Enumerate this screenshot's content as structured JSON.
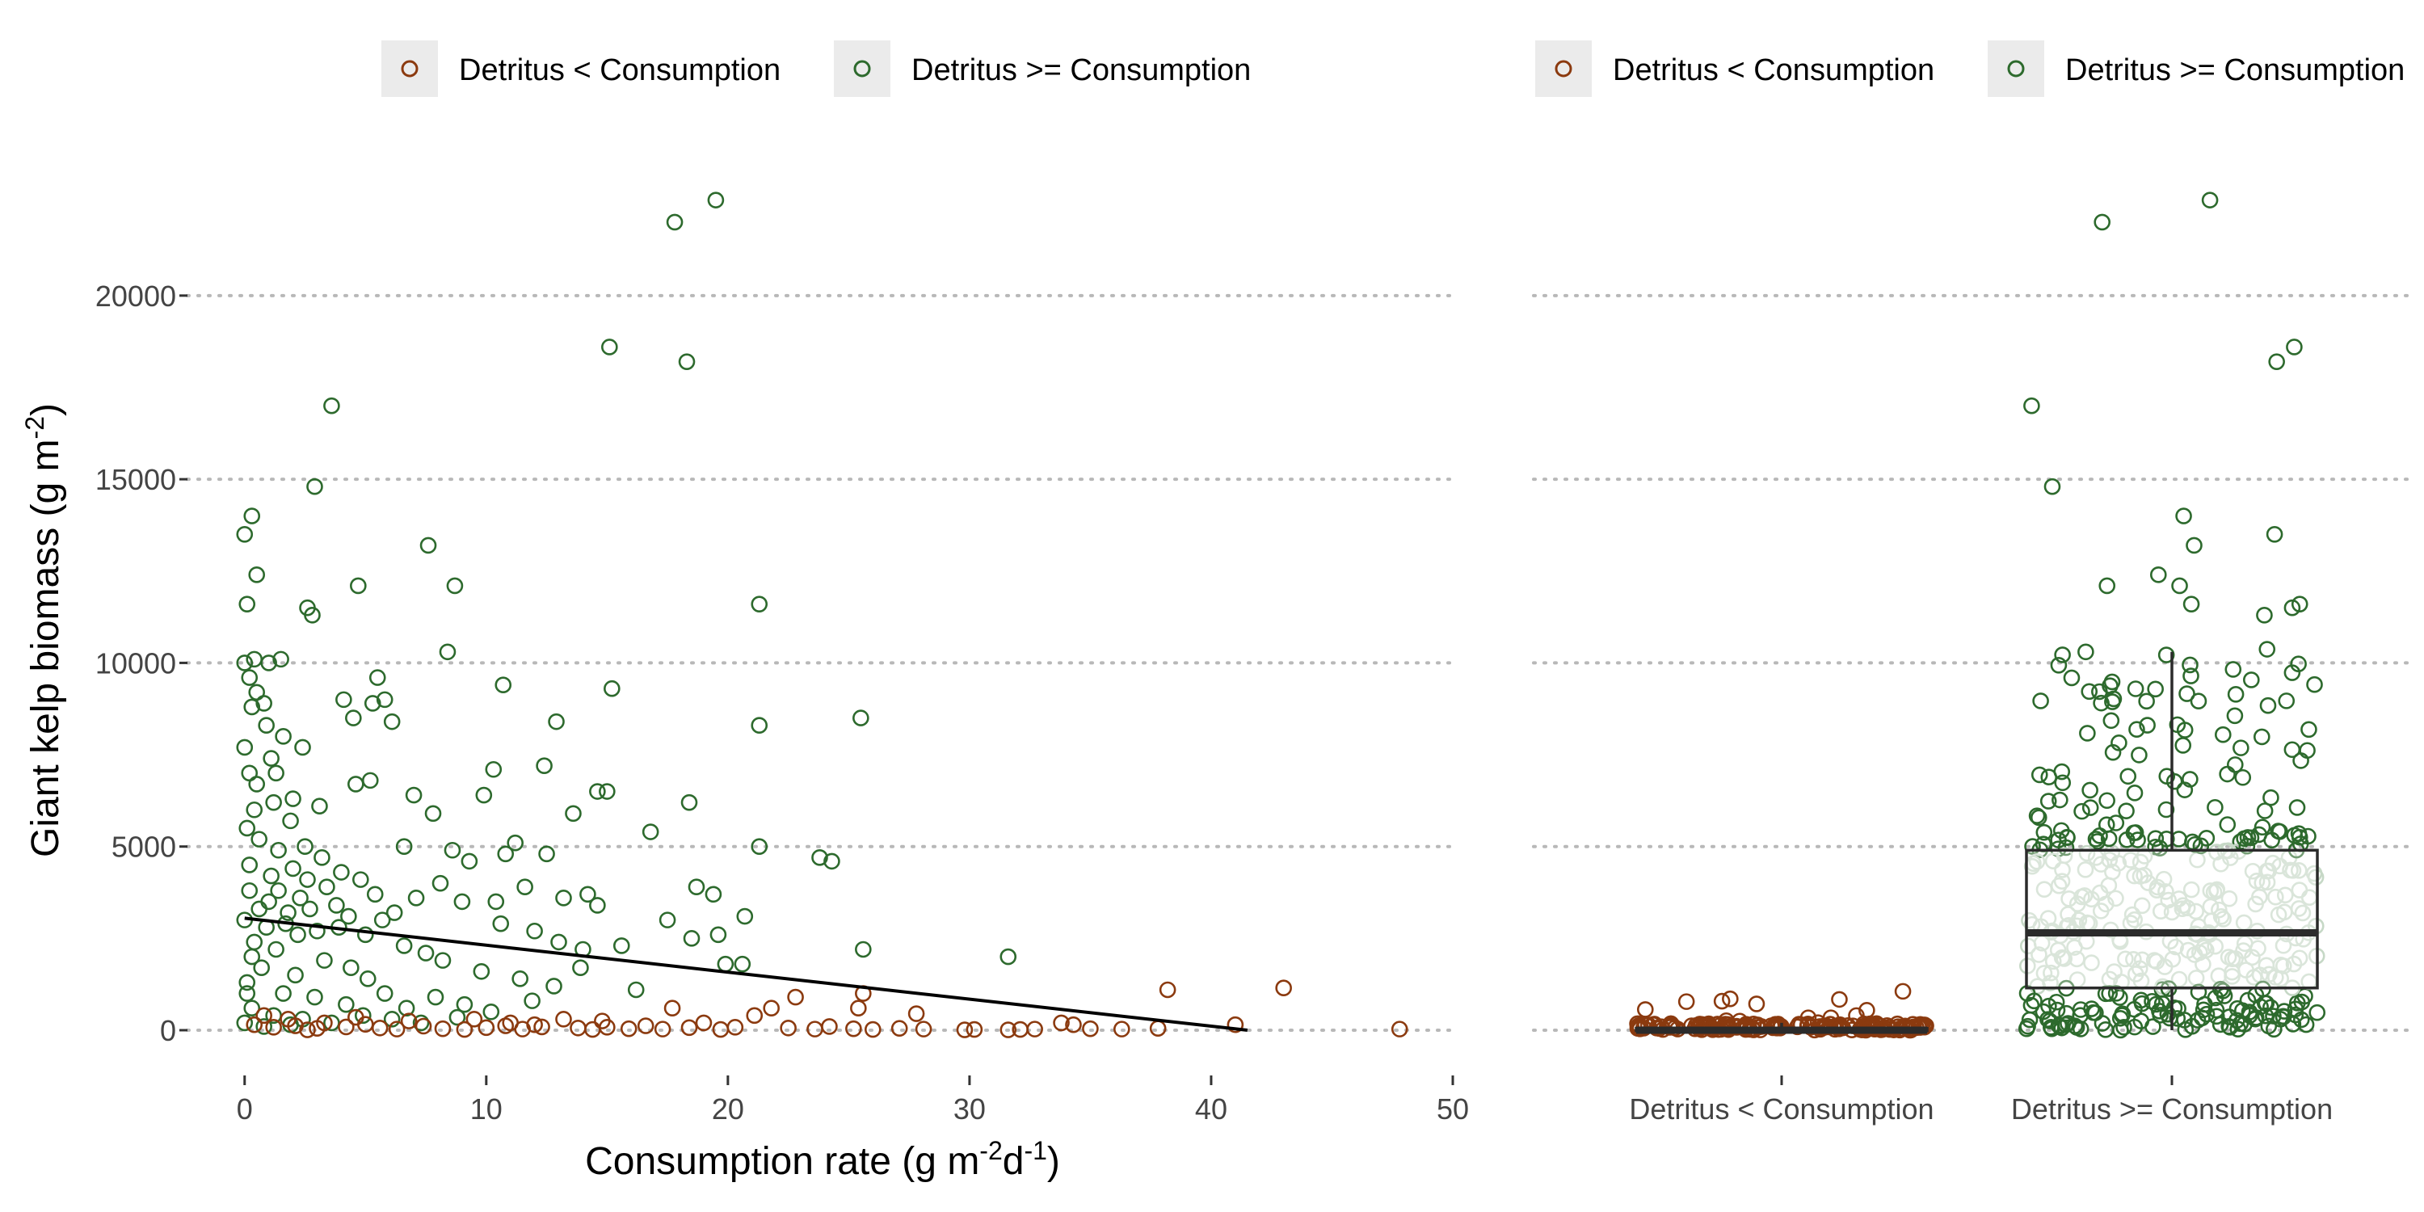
{
  "legend": {
    "entries": [
      {
        "label": "Detritus < Consumption",
        "color": "#8b3a0f"
      },
      {
        "label": "Detritus >= Consumption",
        "color": "#2d6a2d"
      }
    ]
  },
  "colors": {
    "detritus_lt": "#8b3a0f",
    "detritus_ge": "#2d6a2d",
    "ge_faded": "#c6d8c6",
    "box_stroke": "#2b2b2b",
    "fit_line": "#000000",
    "grid": "#b8b8b8"
  },
  "chart_data": [
    {
      "type": "scatter",
      "xlabel": "Consumption rate (g m-2d-1)",
      "ylabel": "Giant kelp biomass (g m-2)",
      "xlim": [
        -2.5,
        50
      ],
      "ylim": [
        -1100,
        24000
      ],
      "xticks": [
        0,
        10,
        20,
        30,
        40,
        50
      ],
      "yticks": [
        0,
        5000,
        10000,
        15000,
        20000
      ],
      "grid": "horizontal dotted",
      "legend_position": "top",
      "series": [
        {
          "name": "Detritus >= Consumption",
          "points": [
            [
              0.0,
              13500
            ],
            [
              0.3,
              14000
            ],
            [
              0.1,
              11600
            ],
            [
              0.5,
              12400
            ],
            [
              2.9,
              14800
            ],
            [
              3.6,
              17000
            ],
            [
              15.1,
              18600
            ],
            [
              17.8,
              22000
            ],
            [
              18.3,
              18200
            ],
            [
              19.5,
              22600
            ],
            [
              7.6,
              13200
            ],
            [
              4.7,
              12100
            ],
            [
              8.7,
              12100
            ],
            [
              21.3,
              11600
            ],
            [
              2.6,
              11500
            ],
            [
              2.8,
              11300
            ],
            [
              8.4,
              10300
            ],
            [
              0.4,
              10100
            ],
            [
              1.5,
              10100
            ],
            [
              0.0,
              10000
            ],
            [
              1.0,
              10000
            ],
            [
              0.2,
              9600
            ],
            [
              10.7,
              9400
            ],
            [
              15.2,
              9300
            ],
            [
              5.5,
              9600
            ],
            [
              4.1,
              9000
            ],
            [
              5.3,
              8900
            ],
            [
              5.8,
              9000
            ],
            [
              4.5,
              8500
            ],
            [
              6.1,
              8400
            ],
            [
              12.9,
              8400
            ],
            [
              21.3,
              8300
            ],
            [
              25.5,
              8500
            ],
            [
              0.3,
              8800
            ],
            [
              0.9,
              8300
            ],
            [
              1.6,
              8000
            ],
            [
              0.0,
              7700
            ],
            [
              1.1,
              7400
            ],
            [
              2.4,
              7700
            ],
            [
              5.2,
              6800
            ],
            [
              4.6,
              6700
            ],
            [
              7.0,
              6400
            ],
            [
              10.3,
              7100
            ],
            [
              12.4,
              7200
            ],
            [
              14.6,
              6500
            ],
            [
              18.4,
              6200
            ],
            [
              15.0,
              6500
            ],
            [
              0.5,
              6700
            ],
            [
              1.2,
              6200
            ],
            [
              2.0,
              6300
            ],
            [
              3.1,
              6100
            ],
            [
              13.6,
              5900
            ],
            [
              16.8,
              5400
            ],
            [
              7.8,
              5900
            ],
            [
              9.9,
              6400
            ],
            [
              21.3,
              5000
            ],
            [
              23.8,
              4700
            ],
            [
              24.3,
              4600
            ],
            [
              11.2,
              5100
            ],
            [
              10.8,
              4800
            ],
            [
              12.5,
              4800
            ],
            [
              8.6,
              4900
            ],
            [
              6.6,
              5000
            ],
            [
              9.3,
              4600
            ],
            [
              0.6,
              5200
            ],
            [
              1.4,
              4900
            ],
            [
              2.5,
              5000
            ],
            [
              3.2,
              4700
            ],
            [
              4.0,
              4300
            ],
            [
              4.8,
              4100
            ],
            [
              14.2,
              3700
            ],
            [
              14.6,
              3400
            ],
            [
              17.5,
              3000
            ],
            [
              18.7,
              3900
            ],
            [
              19.4,
              3700
            ],
            [
              20.7,
              3100
            ],
            [
              10.4,
              3500
            ],
            [
              9.0,
              3500
            ],
            [
              8.1,
              4000
            ],
            [
              11.6,
              3900
            ],
            [
              13.2,
              3600
            ],
            [
              7.1,
              3600
            ],
            [
              6.2,
              3200
            ],
            [
              5.7,
              3000
            ],
            [
              0.2,
              3800
            ],
            [
              1.0,
              3500
            ],
            [
              1.8,
              3200
            ],
            [
              2.7,
              3300
            ],
            [
              3.9,
              2800
            ],
            [
              3.0,
              2700
            ],
            [
              2.2,
              2600
            ],
            [
              0.4,
              2400
            ],
            [
              1.3,
              2200
            ],
            [
              6.6,
              2300
            ],
            [
              7.5,
              2100
            ],
            [
              8.2,
              1900
            ],
            [
              10.6,
              2900
            ],
            [
              12.0,
              2700
            ],
            [
              13.0,
              2400
            ],
            [
              14.0,
              2200
            ],
            [
              15.6,
              2300
            ],
            [
              18.5,
              2500
            ],
            [
              19.6,
              2600
            ],
            [
              19.9,
              1800
            ],
            [
              20.6,
              1800
            ],
            [
              25.6,
              2200
            ],
            [
              31.6,
              2000
            ],
            [
              9.8,
              1600
            ],
            [
              11.4,
              1400
            ],
            [
              12.8,
              1200
            ],
            [
              13.9,
              1700
            ],
            [
              16.2,
              1100
            ],
            [
              3.3,
              1900
            ],
            [
              4.4,
              1700
            ],
            [
              5.1,
              1400
            ],
            [
              2.1,
              1500
            ],
            [
              0.7,
              1700
            ],
            [
              0.1,
              1300
            ],
            [
              1.6,
              1000
            ],
            [
              2.9,
              900
            ],
            [
              4.2,
              700
            ],
            [
              5.8,
              1000
            ],
            [
              6.7,
              600
            ],
            [
              7.9,
              900
            ],
            [
              9.1,
              700
            ],
            [
              10.2,
              500
            ],
            [
              11.9,
              800
            ],
            [
              0.3,
              600
            ],
            [
              1.2,
              400
            ],
            [
              2.4,
              300
            ],
            [
              3.6,
              200
            ],
            [
              4.9,
              400
            ],
            [
              6.1,
              300
            ],
            [
              7.3,
              200
            ],
            [
              8.8,
              350
            ],
            [
              0.0,
              200
            ],
            [
              0.8,
              100
            ],
            [
              1.9,
              150
            ],
            [
              0.1,
              5500
            ],
            [
              0.2,
              4500
            ],
            [
              0.0,
              3000
            ],
            [
              0.3,
              2000
            ],
            [
              0.1,
              1000
            ],
            [
              0.2,
              7000
            ],
            [
              0.6,
              3300
            ],
            [
              0.9,
              2800
            ],
            [
              1.1,
              4200
            ],
            [
              1.4,
              3800
            ],
            [
              1.7,
              2900
            ],
            [
              2.0,
              4400
            ],
            [
              2.3,
              3600
            ],
            [
              2.6,
              4100
            ],
            [
              3.4,
              3900
            ],
            [
              3.8,
              3400
            ],
            [
              4.3,
              3100
            ],
            [
              5.0,
              2600
            ],
            [
              5.4,
              3700
            ],
            [
              0.5,
              9200
            ],
            [
              0.8,
              8900
            ],
            [
              1.3,
              7000
            ],
            [
              1.9,
              5700
            ],
            [
              0.4,
              6000
            ]
          ]
        },
        {
          "name": "Detritus < Consumption",
          "points": [
            [
              0.4,
              150
            ],
            [
              1.2,
              80
            ],
            [
              2.1,
              120
            ],
            [
              3.0,
              50
            ],
            [
              3.3,
              200
            ],
            [
              4.2,
              90
            ],
            [
              5.0,
              160
            ],
            [
              5.6,
              60
            ],
            [
              6.3,
              30
            ],
            [
              7.4,
              110
            ],
            [
              8.2,
              40
            ],
            [
              9.1,
              20
            ],
            [
              10.0,
              70
            ],
            [
              10.8,
              120
            ],
            [
              11.5,
              30
            ],
            [
              12.3,
              90
            ],
            [
              13.2,
              300
            ],
            [
              13.8,
              60
            ],
            [
              14.4,
              20
            ],
            [
              15.0,
              80
            ],
            [
              15.9,
              40
            ],
            [
              16.6,
              120
            ],
            [
              17.3,
              30
            ],
            [
              17.7,
              600
            ],
            [
              18.4,
              70
            ],
            [
              19.0,
              200
            ],
            [
              19.7,
              20
            ],
            [
              20.3,
              80
            ],
            [
              21.1,
              400
            ],
            [
              21.8,
              600
            ],
            [
              22.5,
              60
            ],
            [
              22.8,
              900
            ],
            [
              23.6,
              30
            ],
            [
              24.2,
              100
            ],
            [
              25.2,
              40
            ],
            [
              25.4,
              600
            ],
            [
              25.6,
              1000
            ],
            [
              26.0,
              20
            ],
            [
              27.1,
              50
            ],
            [
              27.8,
              450
            ],
            [
              28.1,
              30
            ],
            [
              29.8,
              10
            ],
            [
              30.2,
              20
            ],
            [
              31.6,
              10
            ],
            [
              32.1,
              20
            ],
            [
              32.7,
              30
            ],
            [
              33.8,
              200
            ],
            [
              34.3,
              150
            ],
            [
              35.0,
              40
            ],
            [
              36.3,
              30
            ],
            [
              37.8,
              50
            ],
            [
              38.2,
              1100
            ],
            [
              41.0,
              150
            ],
            [
              43.0,
              1150
            ],
            [
              47.8,
              30
            ],
            [
              0.8,
              400
            ],
            [
              1.8,
              300
            ],
            [
              2.6,
              10
            ],
            [
              4.6,
              350
            ],
            [
              6.8,
              250
            ],
            [
              9.5,
              300
            ],
            [
              11.0,
              200
            ],
            [
              12.0,
              150
            ],
            [
              14.8,
              250
            ]
          ]
        }
      ],
      "fit_line": {
        "x": [
          0,
          41.5
        ],
        "y": [
          3050,
          0
        ]
      }
    },
    {
      "type": "box",
      "categories": [
        "Detritus < Consumption",
        "Detritus >= Consumption"
      ],
      "ylim": [
        -1100,
        24000
      ],
      "yticks": [
        0,
        5000,
        10000,
        15000,
        20000
      ],
      "grid": "horizontal dotted",
      "legend_position": "top",
      "boxes": [
        {
          "category": "Detritus < Consumption",
          "min": 0,
          "q1": 0,
          "median": 0,
          "q3": 50,
          "max": 200
        },
        {
          "category": "Detritus >= Consumption",
          "min": 0,
          "q1": 1150,
          "median": 2650,
          "q3": 4900,
          "max": 10300
        }
      ],
      "outliers": {
        "Detritus >= Consumption": [
          22600,
          22000,
          18600,
          18200,
          17000,
          14800,
          14000,
          13500,
          13200,
          12400,
          12100,
          12100,
          11600,
          11600,
          11500,
          11300,
          10300
        ]
      }
    }
  ]
}
